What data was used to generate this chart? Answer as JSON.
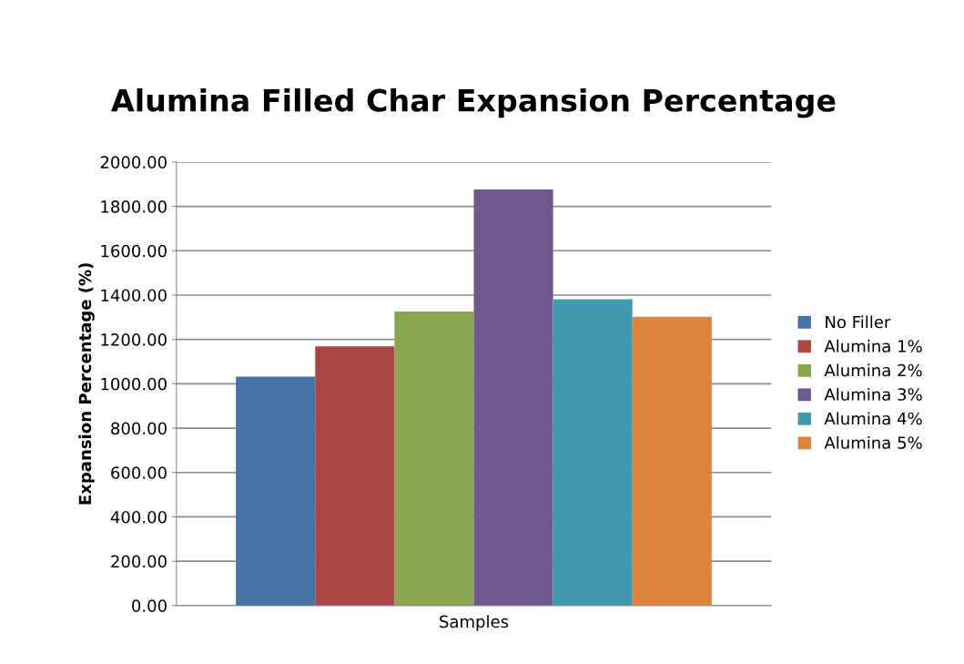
{
  "chart_data": {
    "type": "bar",
    "title": "Alumina Filled Char Expansion Percentage",
    "xlabel": "Samples",
    "ylabel": "Expansion Percentage (%)",
    "categories": [
      null
    ],
    "series": [
      {
        "name": "No Filler",
        "color": "#4572a7",
        "values": [
          1032
        ]
      },
      {
        "name": "Alumina 1%",
        "color": "#aa4643",
        "values": [
          1169
        ]
      },
      {
        "name": "Alumina 2%",
        "color": "#89a54e",
        "values": [
          1326
        ]
      },
      {
        "name": "Alumina 3%",
        "color": "#71588f",
        "values": [
          1876
        ]
      },
      {
        "name": "Alumina 4%",
        "color": "#4198af",
        "values": [
          1381
        ]
      },
      {
        "name": "Alumina 5%",
        "color": "#db843d",
        "values": [
          1302
        ]
      }
    ],
    "ylim": [
      0,
      2000
    ],
    "yticks": [
      {
        "value": 0,
        "label": "0.00"
      },
      {
        "value": 200,
        "label": "200.00"
      },
      {
        "value": 400,
        "label": "400.00"
      },
      {
        "value": 600,
        "label": "600.00"
      },
      {
        "value": 800,
        "label": "800.00"
      },
      {
        "value": 1000,
        "label": "1000.00"
      },
      {
        "value": 1200,
        "label": "1200.00"
      },
      {
        "value": 1400,
        "label": "1400.00"
      },
      {
        "value": 1600,
        "label": "1600.00"
      },
      {
        "value": 1800,
        "label": "1800.00"
      },
      {
        "value": 2000,
        "label": "2000.00"
      }
    ],
    "grid": "y",
    "legend": "right"
  }
}
